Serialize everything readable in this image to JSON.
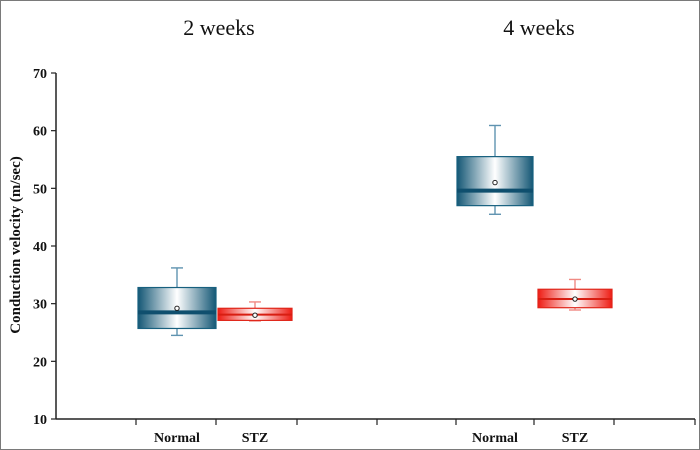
{
  "chart_data": {
    "type": "box",
    "group_titles": [
      "2 weeks",
      "4 weeks"
    ],
    "ylabel": "Conduction velocity  (m/sec)",
    "ylim": [
      10,
      70
    ],
    "yticks": [
      10,
      20,
      30,
      40,
      50,
      60,
      70
    ],
    "categories": [
      "Normal",
      "STZ",
      "Normal",
      "STZ"
    ],
    "series": [
      {
        "group": "2 weeks",
        "category": "Normal",
        "color": "#1e6a8e",
        "whisker_low": 24.5,
        "q1": 25.7,
        "median": 28.5,
        "q3": 32.8,
        "whisker_high": 36.2,
        "mean": 29.2
      },
      {
        "group": "2 weeks",
        "category": "STZ",
        "color": "#ee2a1c",
        "whisker_low": 27.0,
        "q1": 27.1,
        "median": 28.1,
        "q3": 29.2,
        "whisker_high": 30.3,
        "mean": 28.0
      },
      {
        "group": "4 weeks",
        "category": "Normal",
        "color": "#1e6a8e",
        "whisker_low": 45.5,
        "q1": 47.0,
        "median": 49.6,
        "q3": 55.5,
        "whisker_high": 60.9,
        "mean": 51.0
      },
      {
        "group": "4 weeks",
        "category": "STZ",
        "color": "#ee2a1c",
        "whisker_low": 28.9,
        "q1": 29.3,
        "median": 30.8,
        "q3": 32.5,
        "whisker_high": 34.2,
        "mean": 30.8
      }
    ]
  }
}
